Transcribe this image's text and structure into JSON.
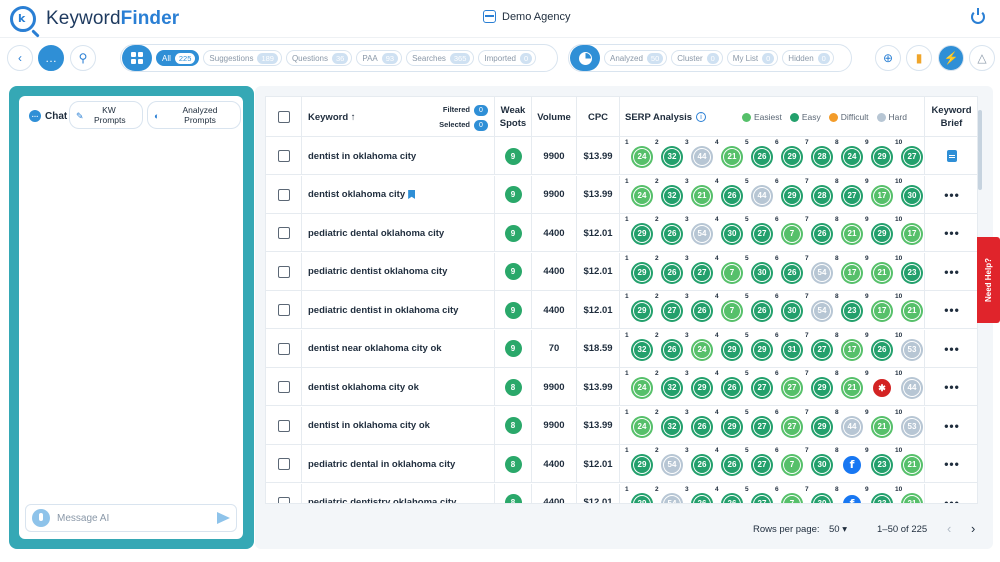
{
  "app": {
    "brand_light": "Keyword",
    "brand_bold": "Finder",
    "logo_letter": "k"
  },
  "header": {
    "workspace": "Demo Agency"
  },
  "filters_left": [
    {
      "label": "All",
      "count": "225",
      "active": true
    },
    {
      "label": "Suggestions",
      "count": "189"
    },
    {
      "label": "Questions",
      "count": "36"
    },
    {
      "label": "PAA",
      "count": "93"
    },
    {
      "label": "Searches",
      "count": "365"
    },
    {
      "label": "Imported",
      "count": "0"
    }
  ],
  "filters_right": [
    {
      "label": "Analyzed",
      "count": "50"
    },
    {
      "label": "Cluster",
      "count": "0"
    },
    {
      "label": "My List",
      "count": "0"
    },
    {
      "label": "Hidden",
      "count": "0"
    }
  ],
  "chat": {
    "tab_label": "Chat",
    "kw_prompts": "KW Prompts",
    "analyzed_prompts": "Analyzed Prompts",
    "message_placeholder": "Message AI"
  },
  "table": {
    "headers": {
      "keyword": "Keyword ↑",
      "filtered": "Filtered",
      "filtered_count": "0",
      "selected": "Selected",
      "selected_count": "0",
      "weak_spots": "Weak Spots",
      "volume": "Volume",
      "cpc": "CPC",
      "serp": "SERP Analysis",
      "brief": "Keyword Brief"
    },
    "legend": [
      {
        "label": "Easiest",
        "color": "#56c06a"
      },
      {
        "label": "Easy",
        "color": "#23a06c"
      },
      {
        "label": "Difficult",
        "color": "#f39c2a"
      },
      {
        "label": "Hard",
        "color": "#b7c6d4"
      }
    ],
    "rows": [
      {
        "keyword": "dentist in oklahoma city",
        "weak": "9",
        "volume": "9900",
        "cpc": "$13.99",
        "brief": "doc",
        "serp": [
          [
            "24",
            "easiest"
          ],
          [
            "32",
            "easy"
          ],
          [
            "44",
            "hard"
          ],
          [
            "21",
            "easiest"
          ],
          [
            "26",
            "easy"
          ],
          [
            "29",
            "easy"
          ],
          [
            "28",
            "easy"
          ],
          [
            "24",
            "easy"
          ],
          [
            "29",
            "easy"
          ],
          [
            "27",
            "easy"
          ]
        ]
      },
      {
        "keyword": "dentist oklahoma city",
        "bookmark": true,
        "weak": "9",
        "volume": "9900",
        "cpc": "$13.99",
        "serp": [
          [
            "24",
            "easiest"
          ],
          [
            "32",
            "easy"
          ],
          [
            "21",
            "easiest"
          ],
          [
            "26",
            "easy"
          ],
          [
            "44",
            "hard"
          ],
          [
            "29",
            "easy"
          ],
          [
            "28",
            "easy"
          ],
          [
            "27",
            "easy"
          ],
          [
            "17",
            "easiest"
          ],
          [
            "30",
            "easy"
          ]
        ]
      },
      {
        "keyword": "pediatric dental oklahoma city",
        "weak": "9",
        "volume": "4400",
        "cpc": "$12.01",
        "serp": [
          [
            "29",
            "easy"
          ],
          [
            "26",
            "easy"
          ],
          [
            "54",
            "hard"
          ],
          [
            "30",
            "easy"
          ],
          [
            "27",
            "easy"
          ],
          [
            "7",
            "easiest"
          ],
          [
            "26",
            "easy"
          ],
          [
            "21",
            "easiest"
          ],
          [
            "29",
            "easy"
          ],
          [
            "17",
            "easiest"
          ]
        ]
      },
      {
        "keyword": "pediatric dentist oklahoma city",
        "weak": "9",
        "volume": "4400",
        "cpc": "$12.01",
        "serp": [
          [
            "29",
            "easy"
          ],
          [
            "26",
            "easy"
          ],
          [
            "27",
            "easy"
          ],
          [
            "7",
            "easiest"
          ],
          [
            "30",
            "easy"
          ],
          [
            "26",
            "easy"
          ],
          [
            "54",
            "hard"
          ],
          [
            "17",
            "easiest"
          ],
          [
            "21",
            "easiest"
          ],
          [
            "23",
            "easy"
          ]
        ]
      },
      {
        "keyword": "pediatric dentist in oklahoma city",
        "weak": "9",
        "volume": "4400",
        "cpc": "$12.01",
        "serp": [
          [
            "29",
            "easy"
          ],
          [
            "27",
            "easy"
          ],
          [
            "26",
            "easy"
          ],
          [
            "7",
            "easiest"
          ],
          [
            "26",
            "easy"
          ],
          [
            "30",
            "easy"
          ],
          [
            "54",
            "hard"
          ],
          [
            "23",
            "easy"
          ],
          [
            "17",
            "easiest"
          ],
          [
            "21",
            "easiest"
          ]
        ]
      },
      {
        "keyword": "dentist near oklahoma city ok",
        "weak": "9",
        "volume": "70",
        "cpc": "$18.59",
        "serp": [
          [
            "32",
            "easy"
          ],
          [
            "26",
            "easy"
          ],
          [
            "24",
            "easiest"
          ],
          [
            "29",
            "easy"
          ],
          [
            "29",
            "easy"
          ],
          [
            "31",
            "easy"
          ],
          [
            "27",
            "easy"
          ],
          [
            "17",
            "easiest"
          ],
          [
            "26",
            "easy"
          ],
          [
            "53",
            "hard"
          ]
        ]
      },
      {
        "keyword": "dentist oklahoma city ok",
        "weak": "8",
        "volume": "9900",
        "cpc": "$13.99",
        "serp": [
          [
            "24",
            "easiest"
          ],
          [
            "32",
            "easy"
          ],
          [
            "29",
            "easy"
          ],
          [
            "26",
            "easy"
          ],
          [
            "27",
            "easy"
          ],
          [
            "27",
            "easiest"
          ],
          [
            "29",
            "easy"
          ],
          [
            "21",
            "easiest"
          ],
          [
            "",
            "yelp"
          ],
          [
            "44",
            "hard"
          ]
        ]
      },
      {
        "keyword": "dentist in oklahoma city ok",
        "weak": "8",
        "volume": "9900",
        "cpc": "$13.99",
        "serp": [
          [
            "24",
            "easiest"
          ],
          [
            "32",
            "easy"
          ],
          [
            "26",
            "easy"
          ],
          [
            "29",
            "easy"
          ],
          [
            "27",
            "easy"
          ],
          [
            "27",
            "easiest"
          ],
          [
            "29",
            "easy"
          ],
          [
            "44",
            "hard"
          ],
          [
            "21",
            "easiest"
          ],
          [
            "53",
            "hard"
          ]
        ]
      },
      {
        "keyword": "pediatric dental in oklahoma city",
        "weak": "8",
        "volume": "4400",
        "cpc": "$12.01",
        "serp": [
          [
            "29",
            "easy"
          ],
          [
            "54",
            "hard"
          ],
          [
            "26",
            "easy"
          ],
          [
            "26",
            "easy"
          ],
          [
            "27",
            "easy"
          ],
          [
            "7",
            "easiest"
          ],
          [
            "30",
            "easy"
          ],
          [
            "f",
            "fb"
          ],
          [
            "23",
            "easy"
          ],
          [
            "21",
            "easiest"
          ]
        ]
      },
      {
        "keyword": "pediatric dentistry oklahoma city",
        "weak": "8",
        "volume": "4400",
        "cpc": "$12.01",
        "serp": [
          [
            "29",
            "easy"
          ],
          [
            "54",
            "hard"
          ],
          [
            "26",
            "easy"
          ],
          [
            "26",
            "easy"
          ],
          [
            "27",
            "easy"
          ],
          [
            "7",
            "easiest"
          ],
          [
            "30",
            "easy"
          ],
          [
            "f",
            "fb"
          ],
          [
            "23",
            "easy"
          ],
          [
            "21",
            "easiest"
          ]
        ]
      }
    ]
  },
  "footer": {
    "rows_label": "Rows per page:",
    "rows_value": "50",
    "range": "1–50 of 225"
  },
  "help": {
    "label": "Need Help?"
  }
}
